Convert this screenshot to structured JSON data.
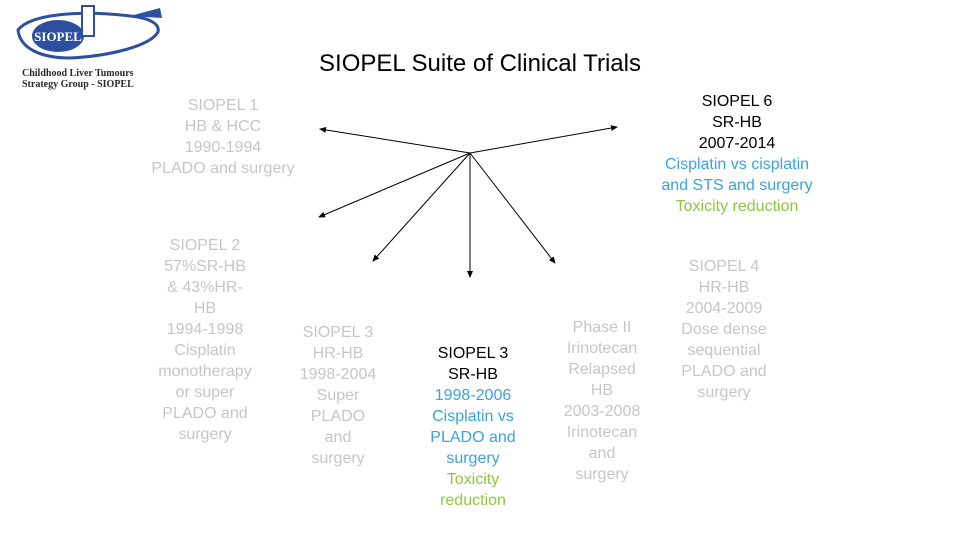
{
  "logo": {
    "emblem_text": "SIOPEL",
    "caption_1": "Childhood Liver Tumours",
    "caption_2": "Strategy Group - SIOPEL"
  },
  "title": "SIOPEL Suite of Clinical Trials",
  "trials": {
    "siopel1": [
      "SIOPEL 1",
      "HB & HCC",
      "1990-1994",
      "PLADO and surgery"
    ],
    "siopel6": {
      "name": "SIOPEL 6",
      "group": "SR-HB",
      "years": "2007-2014",
      "design_1": "Cisplatin vs cisplatin",
      "design_2": "and STS and surgery",
      "aim": "Toxicity reduction"
    },
    "siopel2": [
      "SIOPEL 2",
      "57%SR-HB",
      "& 43%HR-",
      "HB",
      "1994-1998",
      "Cisplatin",
      "monotherapy",
      "or super",
      "PLADO and",
      "surgery"
    ],
    "siopel3hr": [
      "SIOPEL 3",
      "HR-HB",
      "1998-2004",
      "Super",
      "PLADO",
      "and",
      "surgery"
    ],
    "siopel3sr": {
      "name": "SIOPEL 3",
      "group": "SR-HB",
      "years": "1998-2006",
      "design_1": "Cisplatin vs",
      "design_2": "PLADO and",
      "design_3": "surgery",
      "aim_1": "Toxicity",
      "aim_2": "reduction"
    },
    "phase2": [
      "Phase II",
      "Irinotecan",
      "Relapsed",
      "HB",
      "2003-2008",
      "Irinotecan",
      "and",
      "surgery"
    ],
    "siopel4": [
      "SIOPEL 4",
      "HR-HB",
      "2004-2009",
      "Dose dense",
      "sequential",
      "PLADO and",
      "surgery"
    ]
  }
}
